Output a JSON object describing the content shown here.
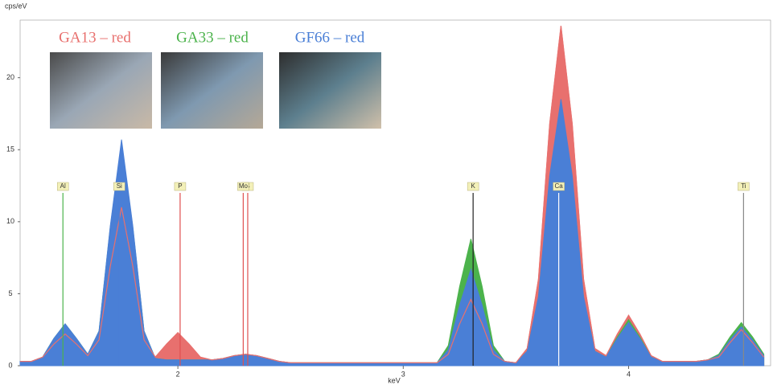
{
  "chart_data": {
    "type": "area",
    "y_label": "cps/eV",
    "x_label": "keV",
    "xlim": [
      1.3,
      4.63
    ],
    "xticks": [
      2,
      3,
      4
    ],
    "ylim": [
      0,
      24
    ],
    "yticks": [
      0,
      5,
      10,
      15,
      20
    ],
    "x": [
      1.3,
      1.35,
      1.4,
      1.45,
      1.5,
      1.55,
      1.6,
      1.65,
      1.7,
      1.75,
      1.8,
      1.85,
      1.9,
      1.95,
      2.0,
      2.05,
      2.1,
      2.15,
      2.2,
      2.25,
      2.3,
      2.35,
      2.4,
      2.45,
      2.5,
      2.55,
      2.6,
      2.65,
      2.7,
      2.75,
      2.8,
      2.85,
      2.9,
      2.95,
      3.0,
      3.05,
      3.1,
      3.15,
      3.2,
      3.25,
      3.3,
      3.35,
      3.4,
      3.45,
      3.5,
      3.55,
      3.6,
      3.65,
      3.7,
      3.75,
      3.8,
      3.85,
      3.9,
      3.95,
      4.0,
      4.05,
      4.1,
      4.15,
      4.2,
      4.25,
      4.3,
      4.35,
      4.4,
      4.45,
      4.5,
      4.55,
      4.6
    ],
    "series": [
      {
        "name": "GA13 – red",
        "color": "#e8706e",
        "values": [
          0.3,
          0.3,
          0.6,
          1.5,
          2.2,
          1.5,
          0.7,
          1.8,
          6.9,
          11.0,
          6.9,
          1.8,
          0.6,
          1.5,
          2.3,
          1.5,
          0.6,
          0.4,
          0.5,
          0.7,
          0.8,
          0.7,
          0.5,
          0.3,
          0.2,
          0.2,
          0.2,
          0.2,
          0.2,
          0.2,
          0.2,
          0.2,
          0.2,
          0.2,
          0.2,
          0.2,
          0.2,
          0.2,
          0.8,
          2.9,
          4.6,
          2.9,
          0.8,
          0.3,
          0.2,
          1.2,
          6.0,
          16.8,
          23.6,
          16.8,
          6.0,
          1.2,
          0.7,
          2.2,
          3.5,
          2.2,
          0.7,
          0.3,
          0.3,
          0.3,
          0.3,
          0.4,
          0.6,
          1.6,
          2.5,
          1.6,
          0.6
        ]
      },
      {
        "name": "GA33 – red",
        "color": "#4cb34c",
        "values": [
          0.3,
          0.3,
          0.6,
          1.9,
          2.9,
          1.9,
          0.8,
          2.4,
          9.6,
          15.5,
          9.6,
          2.4,
          0.5,
          0.4,
          0.4,
          0.4,
          0.4,
          0.4,
          0.5,
          0.7,
          0.8,
          0.7,
          0.5,
          0.3,
          0.2,
          0.2,
          0.2,
          0.2,
          0.2,
          0.2,
          0.2,
          0.2,
          0.2,
          0.2,
          0.2,
          0.2,
          0.2,
          0.2,
          1.4,
          5.5,
          8.8,
          5.5,
          1.4,
          0.3,
          0.2,
          1.0,
          4.7,
          13.0,
          18.2,
          13.0,
          4.7,
          1.0,
          0.6,
          2.0,
          3.2,
          2.0,
          0.6,
          0.3,
          0.3,
          0.3,
          0.3,
          0.4,
          0.8,
          2.0,
          3.0,
          2.0,
          0.8
        ]
      },
      {
        "name": "GF66 – red",
        "color": "#4a7fd6",
        "values": [
          0.3,
          0.3,
          0.6,
          1.9,
          2.9,
          1.9,
          0.8,
          2.4,
          9.7,
          15.7,
          9.7,
          2.4,
          0.5,
          0.4,
          0.4,
          0.4,
          0.4,
          0.4,
          0.5,
          0.7,
          0.8,
          0.7,
          0.5,
          0.3,
          0.2,
          0.2,
          0.2,
          0.2,
          0.2,
          0.2,
          0.2,
          0.2,
          0.2,
          0.2,
          0.2,
          0.2,
          0.2,
          0.2,
          1.1,
          4.2,
          6.7,
          4.2,
          1.1,
          0.3,
          0.2,
          1.0,
          4.8,
          13.2,
          18.5,
          13.2,
          4.8,
          1.0,
          0.6,
          1.9,
          3.0,
          1.9,
          0.6,
          0.3,
          0.3,
          0.3,
          0.3,
          0.4,
          0.7,
          1.8,
          2.7,
          1.8,
          0.7
        ]
      }
    ],
    "markers": [
      {
        "label": "Al",
        "x": 1.49,
        "color": "#4cb34c"
      },
      {
        "label": "Si",
        "x": 1.74,
        "color": "#4a7fd6"
      },
      {
        "label": "P",
        "x": 2.01,
        "color": "#e05050"
      },
      {
        "label": "S",
        "x": 2.31,
        "color": "#e05050"
      },
      {
        "label": "Mo",
        "x": 2.29,
        "color": "#e05050"
      },
      {
        "label": "K",
        "x": 3.31,
        "color": "#222222"
      },
      {
        "label": "Ca",
        "x": 3.69,
        "color": "#ffffff"
      },
      {
        "label": "Ti",
        "x": 4.51,
        "color": "#888888"
      }
    ]
  }
}
